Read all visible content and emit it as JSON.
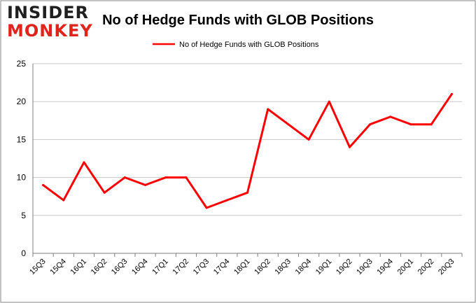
{
  "brand": {
    "line1": "INSIDER",
    "line2": "MONKEY",
    "color_dark": "#1f1f1f",
    "color_red": "#e0231b"
  },
  "chart_data": {
    "type": "line",
    "title": "No of Hedge Funds with GLOB Positions",
    "xlabel": "",
    "ylabel": "",
    "categories": [
      "15Q3",
      "15Q4",
      "16Q1",
      "16Q2",
      "16Q3",
      "16Q4",
      "17Q1",
      "17Q2",
      "17Q3",
      "17Q4",
      "18Q1",
      "18Q2",
      "18Q3",
      "18Q4",
      "19Q1",
      "19Q2",
      "19Q3",
      "19Q4",
      "20Q1",
      "20Q2",
      "20Q3"
    ],
    "series": [
      {
        "name": "No of Hedge Funds with GLOB Positions",
        "color": "#ff0000",
        "values": [
          9,
          7,
          12,
          8,
          10,
          9,
          10,
          10,
          6,
          7,
          8,
          19,
          17,
          15,
          20,
          14,
          17,
          18,
          17,
          17,
          21
        ]
      }
    ],
    "ylim": [
      0,
      25
    ],
    "yticks": [
      0,
      5,
      10,
      15,
      20,
      25
    ],
    "grid": true,
    "legend_position": "top-center"
  }
}
